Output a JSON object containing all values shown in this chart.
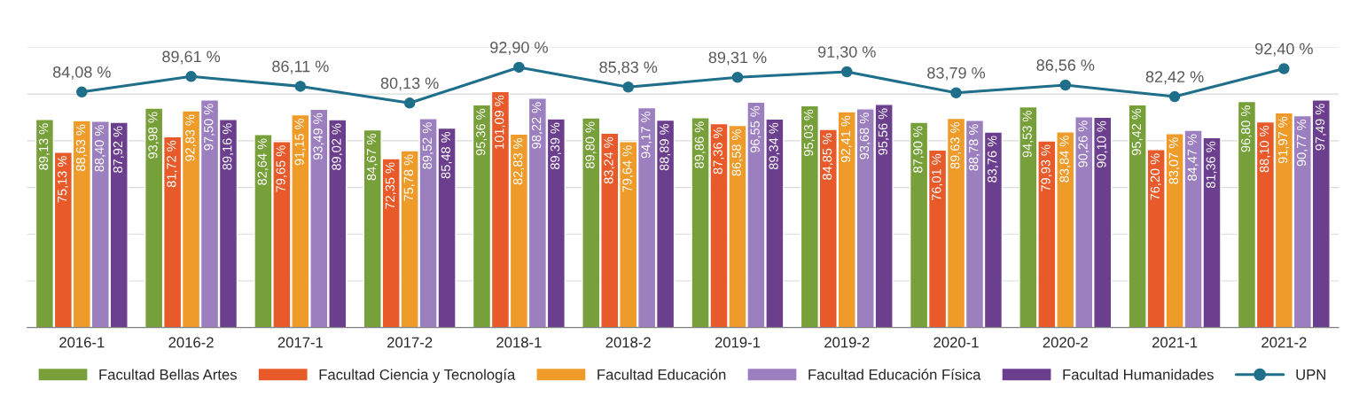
{
  "chart_data": {
    "type": "bar",
    "categories": [
      "2016-1",
      "2016-2",
      "2017-1",
      "2017-2",
      "2018-1",
      "2018-2",
      "2019-1",
      "2019-2",
      "2020-1",
      "2020-2",
      "2021-1",
      "2021-2"
    ],
    "ylim": [
      0,
      120
    ],
    "yticks": [
      {
        "value": 0,
        "label": null
      },
      {
        "value": 20,
        "label": null
      },
      {
        "value": 40,
        "label": null
      },
      {
        "value": 60,
        "label": null
      },
      {
        "value": 80,
        "label": null
      },
      {
        "value": 100,
        "label": null
      },
      {
        "value": 120,
        "label": null
      }
    ],
    "y2lim": [
      0,
      100
    ],
    "tick_labels": "x",
    "grid": "y",
    "legend": "bottom",
    "series": [
      {
        "name": "Facultad Bellas Artes",
        "color": "#77a03a",
        "values": [
          89.13,
          93.98,
          82.64,
          84.67,
          95.36,
          89.8,
          89.86,
          95.03,
          87.9,
          94.53,
          95.42,
          96.8
        ],
        "value_labels": [
          "89,13 %",
          "93,98 %",
          "82,64 %",
          "84,67 %",
          "95,36 %",
          "89,80 %",
          "89,86 %",
          "95,03 %",
          "87,90 %",
          "94,53 %",
          "95,42 %",
          "96,80 %"
        ]
      },
      {
        "name": "Facultad Ciencia y Tecnología",
        "color": "#e85a2a",
        "values": [
          75.13,
          81.72,
          79.65,
          72.35,
          101.09,
          83.24,
          87.36,
          84.85,
          76.01,
          79.93,
          76.2,
          88.1
        ],
        "value_labels": [
          "75,13 %",
          "81,72 %",
          "79,65 %",
          "72,35 %",
          "101,09 %",
          "83,24 %",
          "87,36 %",
          "84,85 %",
          "76,01 %",
          "79,93 %",
          "76,20 %",
          "88,10 %"
        ]
      },
      {
        "name": "Facultad Educación",
        "color": "#ee9b2a",
        "values": [
          88.63,
          92.83,
          91.15,
          75.78,
          82.83,
          79.64,
          86.58,
          92.41,
          89.63,
          83.84,
          83.07,
          91.97
        ],
        "value_labels": [
          "88,63 %",
          "92,83 %",
          "91,15 %",
          "75,78 %",
          "82,83 %",
          "79,64 %",
          "86,58 %",
          "92,41 %",
          "89,63 %",
          "83,84 %",
          "83,07 %",
          "91,97 %"
        ]
      },
      {
        "name": "Facultad Educación Física",
        "color": "#9b7fbf",
        "values": [
          88.4,
          97.5,
          93.49,
          89.52,
          98.22,
          94.17,
          96.55,
          93.68,
          88.78,
          90.26,
          84.47,
          90.77
        ],
        "value_labels": [
          "88,40 %",
          "97,50 %",
          "93,49 %",
          "89,52 %",
          "98,22 %",
          "94,17 %",
          "96,55 %",
          "93,68 %",
          "88,78 %",
          "90,26 %",
          "84,47 %",
          "90,77 %"
        ]
      },
      {
        "name": "Facultad Humanidades",
        "color": "#6b3e8e",
        "values": [
          87.92,
          89.16,
          89.02,
          85.48,
          89.39,
          88.89,
          89.34,
          95.56,
          83.76,
          90.1,
          81.36,
          97.49
        ],
        "value_labels": [
          "87,92 %",
          "89,16 %",
          "89,02 %",
          "85,48 %",
          "89,39 %",
          "88,89 %",
          "89,34 %",
          "95,56 %",
          "83,76 %",
          "90,10 %",
          "81,36 %",
          "97,49 %"
        ]
      },
      {
        "name": "UPN",
        "type": "line",
        "axis": "y2",
        "marker": "circle",
        "color": "#1f6f8b",
        "values": [
          84.08,
          89.61,
          86.11,
          80.13,
          92.9,
          85.83,
          89.31,
          91.3,
          83.79,
          86.56,
          82.42,
          92.4
        ],
        "value_labels": [
          "84,08 %",
          "89,61 %",
          "86,11 %",
          "80,13 %",
          "92,90 %",
          "85,83 %",
          "89,31 %",
          "91,30 %",
          "83,79 %",
          "86,56 %",
          "82,42 %",
          "92,40 %"
        ]
      }
    ]
  }
}
